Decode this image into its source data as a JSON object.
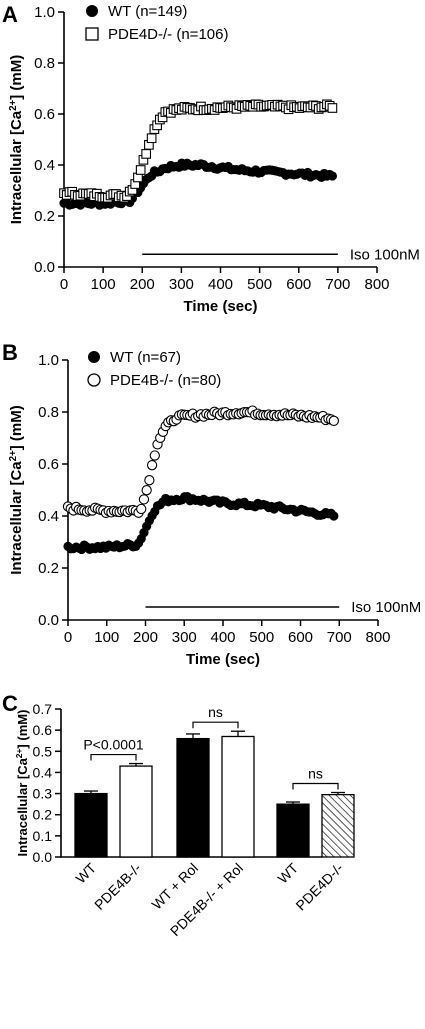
{
  "chart_data": [
    {
      "panel": "A",
      "type": "scatter",
      "xlabel": "Time (sec)",
      "ylabel": "Intracellular [Ca2+] (mM)",
      "ylabel_parts": {
        "base": "Intracellular [Ca",
        "sup": "2+",
        "end": "] (mM)"
      },
      "xlim": [
        0,
        800
      ],
      "ylim": [
        0,
        1.0
      ],
      "xticks": [
        0,
        100,
        200,
        300,
        400,
        500,
        600,
        700,
        800
      ],
      "yticks": [
        0.0,
        0.2,
        0.4,
        0.6,
        0.8,
        1.0
      ],
      "legend_position": "top-left",
      "annotation": {
        "text": "Iso 100nM",
        "x_start": 200,
        "x_end": 700,
        "y": 0.05
      },
      "series": [
        {
          "name": "WT (n=149)",
          "marker": "filled-circle",
          "curve": [
            [
              0,
              0.25
            ],
            [
              100,
              0.25
            ],
            [
              170,
              0.26
            ],
            [
              190,
              0.3
            ],
            [
              220,
              0.36
            ],
            [
              260,
              0.39
            ],
            [
              300,
              0.4
            ],
            [
              350,
              0.4
            ],
            [
              400,
              0.39
            ],
            [
              450,
              0.38
            ],
            [
              500,
              0.375
            ],
            [
              550,
              0.37
            ],
            [
              600,
              0.365
            ],
            [
              650,
              0.36
            ],
            [
              690,
              0.355
            ]
          ]
        },
        {
          "name": "PDE4D-/- (n=106)",
          "marker": "open-square",
          "curve": [
            [
              0,
              0.29
            ],
            [
              100,
              0.28
            ],
            [
              160,
              0.28
            ],
            [
              180,
              0.32
            ],
            [
              200,
              0.4
            ],
            [
              220,
              0.5
            ],
            [
              240,
              0.57
            ],
            [
              260,
              0.61
            ],
            [
              300,
              0.62
            ],
            [
              400,
              0.625
            ],
            [
              500,
              0.63
            ],
            [
              600,
              0.625
            ],
            [
              690,
              0.63
            ]
          ]
        }
      ]
    },
    {
      "panel": "B",
      "type": "scatter",
      "xlabel": "Time (sec)",
      "ylabel": "Intracellular [Ca2+] (mM)",
      "ylabel_parts": {
        "base": "Intracellular [Ca",
        "sup": "2+",
        "end": "] (mM)"
      },
      "xlim": [
        0,
        800
      ],
      "ylim": [
        0,
        1.0
      ],
      "xticks": [
        0,
        100,
        200,
        300,
        400,
        500,
        600,
        700,
        800
      ],
      "yticks": [
        0.0,
        0.2,
        0.4,
        0.6,
        0.8,
        1.0
      ],
      "legend_position": "top-left",
      "annotation": {
        "text": "Iso 100nM",
        "x_start": 200,
        "x_end": 700,
        "y": 0.05
      },
      "series": [
        {
          "name": "WT (n=67)",
          "marker": "filled-circle",
          "curve": [
            [
              0,
              0.28
            ],
            [
              100,
              0.28
            ],
            [
              180,
              0.29
            ],
            [
              200,
              0.35
            ],
            [
              220,
              0.42
            ],
            [
              250,
              0.46
            ],
            [
              300,
              0.47
            ],
            [
              350,
              0.46
            ],
            [
              400,
              0.45
            ],
            [
              500,
              0.44
            ],
            [
              600,
              0.42
            ],
            [
              690,
              0.4
            ]
          ]
        },
        {
          "name": "PDE4B-/- (n=80)",
          "marker": "open-circle",
          "curve": [
            [
              0,
              0.43
            ],
            [
              100,
              0.42
            ],
            [
              185,
              0.42
            ],
            [
              200,
              0.48
            ],
            [
              215,
              0.58
            ],
            [
              230,
              0.68
            ],
            [
              250,
              0.74
            ],
            [
              280,
              0.78
            ],
            [
              350,
              0.79
            ],
            [
              450,
              0.8
            ],
            [
              550,
              0.79
            ],
            [
              650,
              0.78
            ],
            [
              690,
              0.77
            ]
          ]
        }
      ]
    },
    {
      "panel": "C",
      "type": "bar",
      "ylabel": "Intracellular [Ca2+] (mM)",
      "ylabel_parts": {
        "base": "Intracellular [Ca",
        "sup": "2+",
        "end": "] (mM)"
      },
      "ylim": [
        0,
        0.7
      ],
      "yticks": [
        0.0,
        0.1,
        0.2,
        0.3,
        0.4,
        0.5,
        0.6,
        0.7
      ],
      "categories": [
        "WT",
        "PDE4B-/-",
        "WT + Rol",
        "PDE4B-/- + Rol",
        "WT",
        "PDE4D-/-"
      ],
      "values": [
        0.3,
        0.43,
        0.56,
        0.57,
        0.25,
        0.295
      ],
      "errors": [
        0.012,
        0.012,
        0.022,
        0.025,
        0.01,
        0.01
      ],
      "fills": [
        "solid",
        "open",
        "solid",
        "open",
        "solid",
        "hatched"
      ],
      "comparisons": [
        {
          "from": 0,
          "to": 1,
          "label": "P<0.0001"
        },
        {
          "from": 2,
          "to": 3,
          "label": "ns"
        },
        {
          "from": 4,
          "to": 5,
          "label": "ns"
        }
      ]
    }
  ]
}
